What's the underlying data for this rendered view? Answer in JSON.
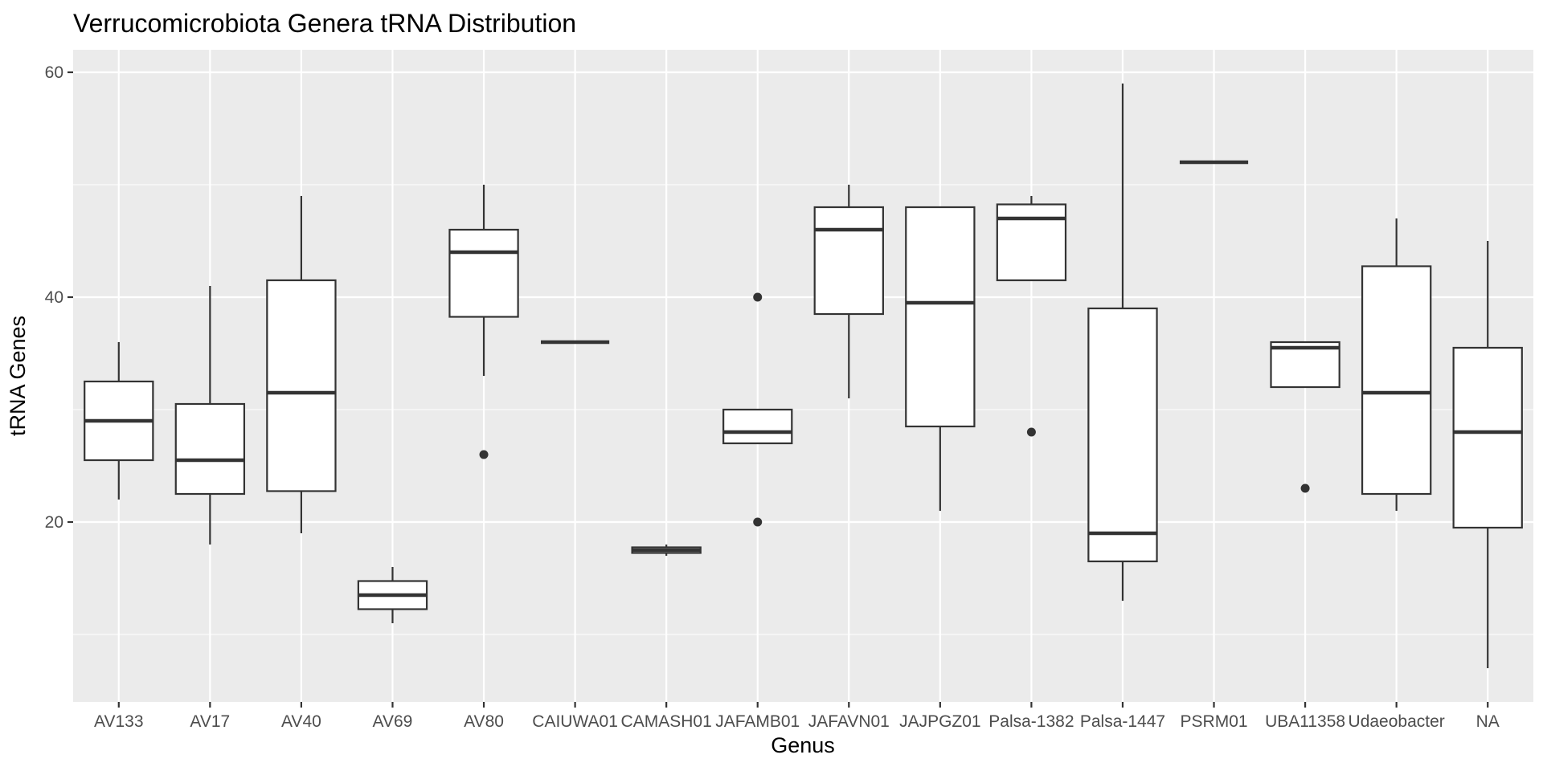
{
  "chart_data": {
    "type": "box",
    "title": "Verrucomicrobiota Genera tRNA Distribution",
    "xlabel": "Genus",
    "ylabel": "tRNA Genes",
    "ylim": [
      4,
      62
    ],
    "yticks": [
      20,
      40,
      60
    ],
    "grid": true,
    "legend": "none",
    "colors": {
      "panel": "#ebebeb",
      "grid": "#ffffff",
      "box_fill": "#ffffff",
      "box_stroke": "#333333",
      "tick_text": "#4d4d4d"
    },
    "categories": [
      "AV133",
      "AV17",
      "AV40",
      "AV69",
      "AV80",
      "CAIUWA01",
      "CAMASH01",
      "JAFAMB01",
      "JAFAVN01",
      "JAJPGZ01",
      "Palsa-1382",
      "Palsa-1447",
      "PSRM01",
      "UBA11358",
      "Udaeobacter",
      "NA"
    ],
    "boxes": [
      {
        "lower_whisker": 22,
        "q1": 25.5,
        "median": 29,
        "q3": 32.5,
        "upper_whisker": 36,
        "outliers": []
      },
      {
        "lower_whisker": 18,
        "q1": 22.5,
        "median": 25.5,
        "q3": 30.5,
        "upper_whisker": 41,
        "outliers": []
      },
      {
        "lower_whisker": 19,
        "q1": 22.75,
        "median": 31.5,
        "q3": 41.5,
        "upper_whisker": 49,
        "outliers": []
      },
      {
        "lower_whisker": 11,
        "q1": 12.25,
        "median": 13.5,
        "q3": 14.75,
        "upper_whisker": 16,
        "outliers": []
      },
      {
        "lower_whisker": 33,
        "q1": 38.25,
        "median": 44,
        "q3": 46,
        "upper_whisker": 50,
        "outliers": [
          26
        ]
      },
      {
        "lower_whisker": 36,
        "q1": 36,
        "median": 36,
        "q3": 36,
        "upper_whisker": 36,
        "outliers": []
      },
      {
        "lower_whisker": 17,
        "q1": 17.25,
        "median": 17.5,
        "q3": 17.75,
        "upper_whisker": 18,
        "outliers": []
      },
      {
        "lower_whisker": 27,
        "q1": 27,
        "median": 28,
        "q3": 30,
        "upper_whisker": 30,
        "outliers": [
          40,
          20
        ]
      },
      {
        "lower_whisker": 31,
        "q1": 38.5,
        "median": 46,
        "q3": 48,
        "upper_whisker": 50,
        "outliers": []
      },
      {
        "lower_whisker": 21,
        "q1": 28.5,
        "median": 39.5,
        "q3": 48,
        "upper_whisker": 48,
        "outliers": []
      },
      {
        "lower_whisker": 41.5,
        "q1": 41.5,
        "median": 47,
        "q3": 48.25,
        "upper_whisker": 49,
        "outliers": [
          28
        ]
      },
      {
        "lower_whisker": 13,
        "q1": 16.5,
        "median": 19,
        "q3": 39,
        "upper_whisker": 59,
        "outliers": []
      },
      {
        "lower_whisker": 52,
        "q1": 52,
        "median": 52,
        "q3": 52,
        "upper_whisker": 52,
        "outliers": []
      },
      {
        "lower_whisker": 32,
        "q1": 32,
        "median": 35.5,
        "q3": 36,
        "upper_whisker": 36,
        "outliers": [
          23
        ]
      },
      {
        "lower_whisker": 21,
        "q1": 22.5,
        "median": 31.5,
        "q3": 42.75,
        "upper_whisker": 47,
        "outliers": []
      },
      {
        "lower_whisker": 7,
        "q1": 19.5,
        "median": 28,
        "q3": 35.5,
        "upper_whisker": 45,
        "outliers": []
      }
    ]
  }
}
